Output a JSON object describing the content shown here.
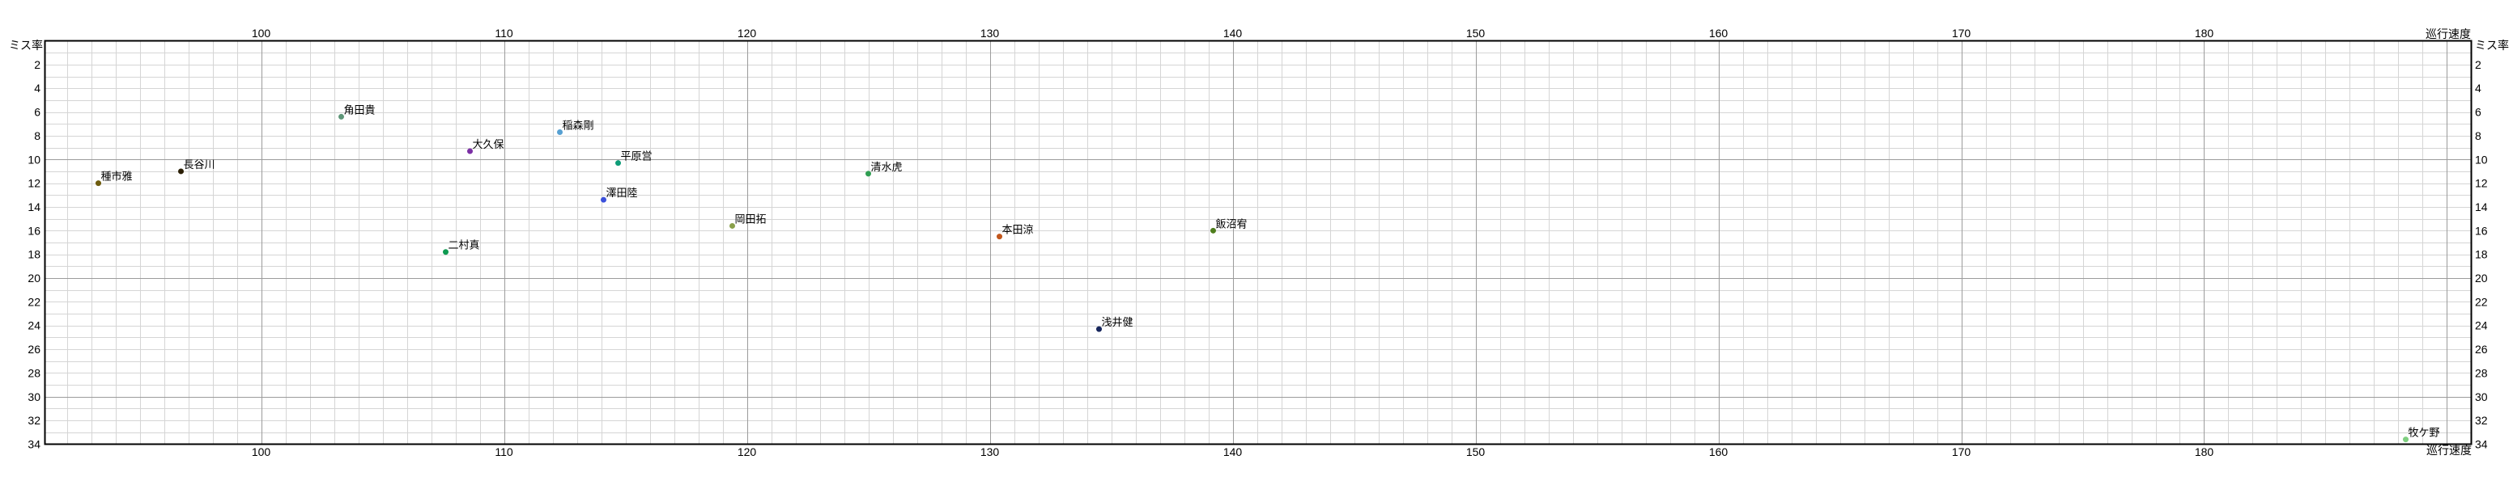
{
  "chart_data": {
    "type": "scatter",
    "title": "",
    "xlabel": "巡行速度",
    "ylabel": "ミス率",
    "xlim": [
      91.1,
      191.0
    ],
    "ylim": [
      0,
      34
    ],
    "y_axis_direction": "increases downward (0 at top frame, 34 at bottom frame)",
    "axes_mirrored": "x tick labels on top and bottom, y tick labels on left and right",
    "x_major_ticks": [
      100,
      110,
      120,
      130,
      140,
      150,
      160,
      170,
      180
    ],
    "y_major_ticks": [
      2,
      4,
      6,
      8,
      10,
      12,
      14,
      16,
      18,
      20,
      22,
      24,
      26,
      28,
      30,
      32,
      34
    ],
    "x_minor_step": 1,
    "y_minor_step": 1,
    "grid": "on (minor every 1 unit, darker major every 10 units)",
    "legend": "none",
    "points": [
      {
        "name": "種市雅",
        "x": 93.3,
        "y": 12.0,
        "color": "#6e5c0e"
      },
      {
        "name": "長谷川",
        "x": 96.7,
        "y": 11.0,
        "color": "#2a1e05"
      },
      {
        "name": "角田貴",
        "x": 103.3,
        "y": 6.4,
        "color": "#5e9678"
      },
      {
        "name": "二村真",
        "x": 107.6,
        "y": 17.8,
        "color": "#0e9a51"
      },
      {
        "name": "大久保",
        "x": 108.6,
        "y": 9.3,
        "color": "#7b2fa5"
      },
      {
        "name": "稲森剛",
        "x": 112.3,
        "y": 7.7,
        "color": "#56a0d2"
      },
      {
        "name": "澤田陸",
        "x": 114.1,
        "y": 13.4,
        "color": "#3b50db"
      },
      {
        "name": "平原営",
        "x": 114.7,
        "y": 10.3,
        "color": "#0e9d78"
      },
      {
        "name": "岡田拓",
        "x": 119.4,
        "y": 15.6,
        "color": "#8aa04b"
      },
      {
        "name": "清水虎",
        "x": 125.0,
        "y": 11.2,
        "color": "#2f9e52"
      },
      {
        "name": "本田涼",
        "x": 130.4,
        "y": 16.5,
        "color": "#c2571d"
      },
      {
        "name": "浅井健",
        "x": 134.5,
        "y": 24.3,
        "color": "#17265c"
      },
      {
        "name": "飯沼宥",
        "x": 139.2,
        "y": 16.0,
        "color": "#4f7e1d"
      },
      {
        "name": "牧ケ野",
        "x": 188.3,
        "y": 33.6,
        "color": "#7fcf80"
      }
    ]
  },
  "style": {
    "background": "#ffffff",
    "frame_color": "#000000",
    "grid_minor_color": "#d5d5d5",
    "grid_major_color": "#9c9c9c",
    "tick_label_color": "#000000",
    "marker_radius": 3.5
  }
}
